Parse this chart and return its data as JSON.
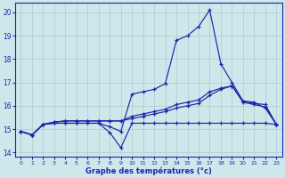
{
  "xlabel": "Graphe des températures (°c)",
  "background_color": "#cce8ea",
  "grid_color": "#aacccc",
  "line_color": "#2222aa",
  "xlim": [
    -0.5,
    23.5
  ],
  "ylim": [
    13.8,
    20.4
  ],
  "xticks": [
    0,
    1,
    2,
    3,
    4,
    5,
    6,
    7,
    8,
    9,
    10,
    11,
    12,
    13,
    14,
    15,
    16,
    17,
    18,
    19,
    20,
    21,
    22,
    23
  ],
  "yticks": [
    14,
    15,
    16,
    17,
    18,
    19,
    20
  ],
  "curve1": [
    14.9,
    14.75,
    15.2,
    15.25,
    15.25,
    15.25,
    15.25,
    15.25,
    15.1,
    14.9,
    16.5,
    16.6,
    16.7,
    16.95,
    18.8,
    19.0,
    19.4,
    20.1,
    17.8,
    17.0,
    16.2,
    16.15,
    15.9,
    15.2
  ],
  "curve2": [
    14.9,
    14.75,
    15.2,
    15.25,
    15.25,
    15.25,
    15.25,
    15.25,
    14.85,
    14.2,
    15.25,
    15.25,
    15.25,
    15.25,
    15.25,
    15.25,
    15.25,
    15.25,
    15.25,
    15.25,
    15.25,
    15.25,
    15.25,
    15.2
  ],
  "curve3": [
    14.9,
    14.75,
    15.2,
    15.3,
    15.35,
    15.35,
    15.35,
    15.35,
    15.35,
    15.35,
    15.55,
    15.65,
    15.75,
    15.85,
    16.05,
    16.15,
    16.25,
    16.6,
    16.75,
    16.85,
    16.2,
    16.1,
    16.05,
    15.2
  ],
  "curve4": [
    14.9,
    14.75,
    15.2,
    15.3,
    15.35,
    15.35,
    15.35,
    15.35,
    15.35,
    15.35,
    15.45,
    15.55,
    15.65,
    15.75,
    15.9,
    16.0,
    16.1,
    16.45,
    16.7,
    16.85,
    16.15,
    16.05,
    15.95,
    15.2
  ]
}
